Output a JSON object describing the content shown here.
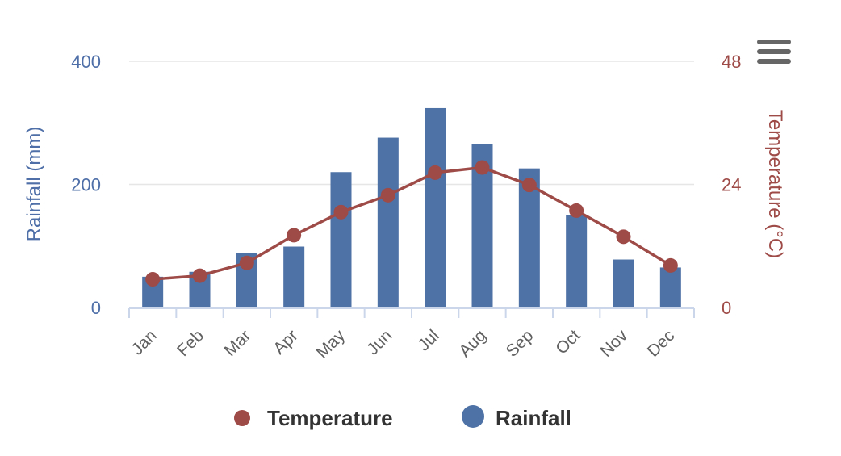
{
  "chart_data": {
    "type": "bar",
    "categories": [
      "Jan",
      "Feb",
      "Mar",
      "Apr",
      "May",
      "Jun",
      "Jul",
      "Aug",
      "Sep",
      "Oct",
      "Nov",
      "Dec"
    ],
    "series": [
      {
        "name": "Rainfall",
        "type": "bar",
        "axis": "left",
        "color": "#4e72a6",
        "values": [
          50,
          58,
          89,
          99,
          220,
          276,
          324,
          266,
          226,
          150,
          78,
          65
        ]
      },
      {
        "name": "Temperature",
        "type": "line",
        "axis": "right",
        "color": "#9e4a47",
        "values": [
          5.5,
          6.2,
          8.7,
          14.1,
          18.6,
          21.9,
          26.3,
          27.3,
          23.9,
          18.9,
          13.8,
          8.2
        ]
      }
    ],
    "y_left": {
      "label": "Rainfall (mm)",
      "min": 0,
      "max": 400,
      "ticks": [
        0,
        200,
        400
      ]
    },
    "y_right": {
      "label": "Temperature (°C)",
      "min": 0,
      "max": 48,
      "ticks": [
        0,
        24,
        48
      ]
    },
    "grid": true,
    "legend": {
      "position": "bottom-center",
      "items": [
        "Temperature",
        "Rainfall"
      ]
    }
  },
  "menu": {
    "icon": "hamburger-menu-icon",
    "color": "#666666"
  }
}
